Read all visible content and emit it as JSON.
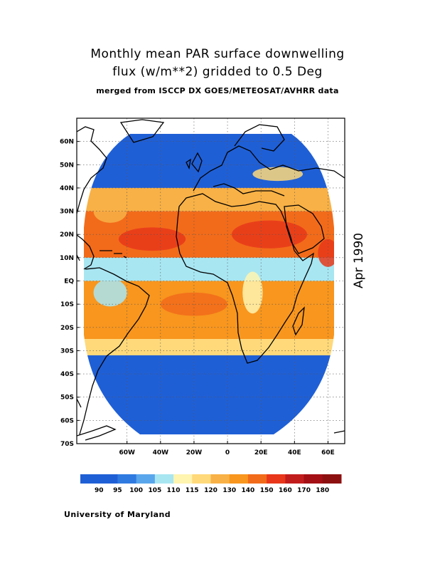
{
  "title": {
    "line1": "Monthly mean PAR surface downwelling",
    "line2": "flux (w/m**2) gridded to 0.5 Deg",
    "line3": "merged from ISCCP DX GOES/METEOSAT/AVHRR data"
  },
  "date": "Apr 1990",
  "credit": "University of Maryland",
  "chart_data": {
    "type": "heatmap",
    "variable": "PAR surface downwelling flux",
    "units": "w/m**2",
    "period": "Apr 1990",
    "lon_range": [
      -90,
      70
    ],
    "lat_range": [
      -70,
      70
    ],
    "lat_ticks": [
      "60N",
      "50N",
      "40N",
      "30N",
      "20N",
      "10N",
      "EQ",
      "10S",
      "20S",
      "30S",
      "40S",
      "50S",
      "60S",
      "70S"
    ],
    "lat_tick_values": [
      60,
      50,
      40,
      30,
      20,
      10,
      0,
      -10,
      -20,
      -30,
      -40,
      -50,
      -60,
      -70
    ],
    "lon_ticks": [
      "60W",
      "40W",
      "20W",
      "0",
      "20E",
      "40E",
      "60E"
    ],
    "lon_tick_values": [
      -60,
      -40,
      -20,
      0,
      20,
      40,
      60
    ],
    "grid": true,
    "colorbar": {
      "levels": [
        "90",
        "95",
        "100",
        "105",
        "110",
        "115",
        "120",
        "130",
        "140",
        "150",
        "160",
        "170",
        "180"
      ],
      "colors": [
        "#1f5fd6",
        "#2f7ae0",
        "#5aa6ec",
        "#a8e6f2",
        "#fff4b0",
        "#ffd97a",
        "#f8b146",
        "#f8961e",
        "#f26b1a",
        "#e8371a",
        "#c21d1d",
        "#a30f14",
        "#8c1010"
      ]
    },
    "bands": [
      {
        "lat_from": 70,
        "lat_to": 40,
        "value_range": "below 95",
        "color_index": 0
      },
      {
        "lat_from": 40,
        "lat_to": 30,
        "value_range": "110-130",
        "color_index": 6
      },
      {
        "lat_from": 30,
        "lat_to": 10,
        "value_range": "130-150",
        "color_index": 8
      },
      {
        "lat_from": 10,
        "lat_to": 0,
        "value_range": "100-120",
        "color_index": 3
      },
      {
        "lat_from": 0,
        "lat_to": -25,
        "value_range": "120-140",
        "color_index": 7
      },
      {
        "lat_from": -25,
        "lat_to": -32,
        "value_range": "110-120",
        "color_index": 5
      },
      {
        "lat_from": -32,
        "lat_to": -70,
        "value_range": "below 95",
        "color_index": 0
      }
    ]
  }
}
